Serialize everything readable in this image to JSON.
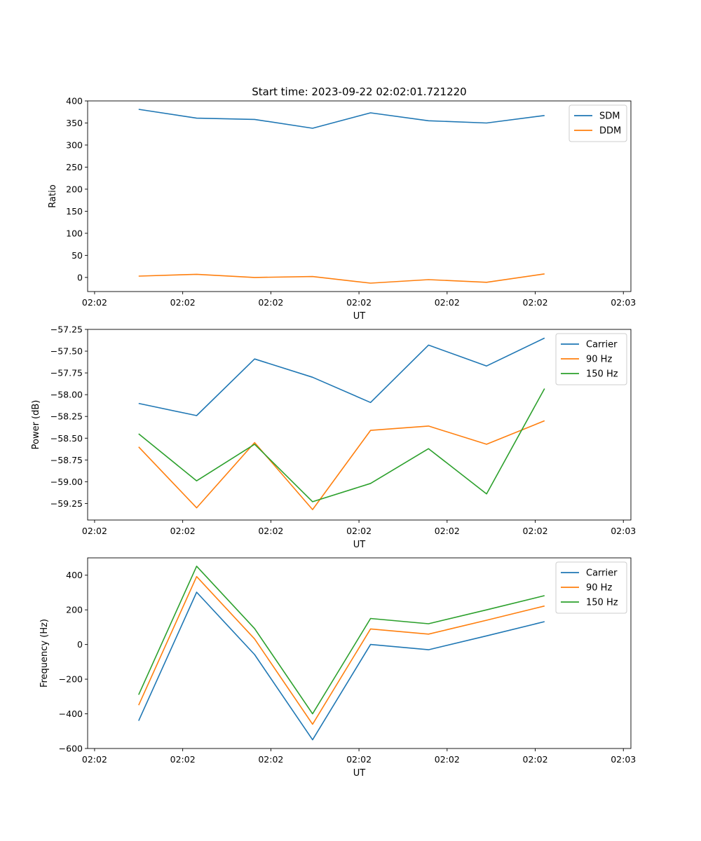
{
  "title": "Start time: 2023-09-22 02:02:01.721220",
  "colors": {
    "blue": "#1f77b4",
    "orange": "#ff7f0e",
    "green": "#2ca02c"
  },
  "chart_data": [
    {
      "type": "line",
      "xlabel": "UT",
      "ylabel": "Ratio",
      "ylim": [
        -32,
        400
      ],
      "yticks": [
        0,
        50,
        100,
        150,
        200,
        250,
        300,
        350,
        400
      ],
      "ytick_labels": [
        "0",
        "50",
        "100",
        "150",
        "200",
        "250",
        "300",
        "350",
        "400"
      ],
      "xlim": [
        -0.12,
        9.25
      ],
      "xticks": [
        0,
        1.52,
        3.04,
        4.56,
        6.08,
        7.6,
        9.12
      ],
      "xtick_labels": [
        "02:02",
        "02:02",
        "02:02",
        "02:02",
        "02:02",
        "02:02",
        "02:03"
      ],
      "x": [
        0.76,
        1.76,
        2.76,
        3.76,
        4.76,
        5.76,
        6.76,
        7.76
      ],
      "legend": "top-right",
      "series": [
        {
          "name": "SDM",
          "color": "#1f77b4",
          "values": [
            381,
            361,
            358,
            338,
            373,
            355,
            350,
            367
          ]
        },
        {
          "name": "DDM",
          "color": "#ff7f0e",
          "values": [
            3,
            7,
            0,
            2,
            -13,
            -5,
            -11,
            8
          ]
        }
      ]
    },
    {
      "type": "line",
      "xlabel": "UT",
      "ylabel": "Power (dB)",
      "ylim": [
        -59.44,
        -57.25
      ],
      "yticks": [
        -59.25,
        -59.0,
        -58.75,
        -58.5,
        -58.25,
        -58.0,
        -57.75,
        -57.5,
        -57.25
      ],
      "ytick_labels": [
        "−59.25",
        "−59.00",
        "−58.75",
        "−58.50",
        "−58.25",
        "−58.00",
        "−57.75",
        "−57.50",
        "−57.25"
      ],
      "xlim": [
        -0.12,
        9.25
      ],
      "xticks": [
        0,
        1.52,
        3.04,
        4.56,
        6.08,
        7.6,
        9.12
      ],
      "xtick_labels": [
        "02:02",
        "02:02",
        "02:02",
        "02:02",
        "02:02",
        "02:02",
        "02:03"
      ],
      "x": [
        0.76,
        1.76,
        2.76,
        3.76,
        4.76,
        5.76,
        6.76,
        7.76
      ],
      "legend": "top-right",
      "series": [
        {
          "name": "Carrier",
          "color": "#1f77b4",
          "values": [
            -58.1,
            -58.24,
            -57.59,
            -57.8,
            -58.09,
            -57.43,
            -57.67,
            -57.35
          ]
        },
        {
          "name": "90 Hz",
          "color": "#ff7f0e",
          "values": [
            -58.6,
            -59.3,
            -58.55,
            -59.32,
            -58.41,
            -58.36,
            -58.57,
            -58.3
          ]
        },
        {
          "name": "150 Hz",
          "color": "#2ca02c",
          "values": [
            -58.45,
            -58.99,
            -58.57,
            -59.23,
            -59.02,
            -58.62,
            -59.14,
            -57.93
          ]
        }
      ]
    },
    {
      "type": "line",
      "xlabel": "UT",
      "ylabel": "Frequency (Hz)",
      "ylim": [
        -600,
        500
      ],
      "yticks": [
        -600,
        -400,
        -200,
        0,
        200,
        400
      ],
      "ytick_labels": [
        "−600",
        "−400",
        "−200",
        "0",
        "200",
        "400"
      ],
      "xlim": [
        -0.12,
        9.25
      ],
      "xticks": [
        0,
        1.52,
        3.04,
        4.56,
        6.08,
        7.6,
        9.12
      ],
      "xtick_labels": [
        "02:02",
        "02:02",
        "02:02",
        "02:02",
        "02:02",
        "02:02",
        "02:03"
      ],
      "x": [
        0.76,
        1.76,
        2.76,
        3.76,
        4.76,
        5.76,
        6.76,
        7.76
      ],
      "legend": "top-right",
      "series": [
        {
          "name": "Carrier",
          "color": "#1f77b4",
          "values": [
            -440,
            302,
            -58,
            -550,
            0,
            -30,
            50,
            132
          ]
        },
        {
          "name": "90 Hz",
          "color": "#ff7f0e",
          "values": [
            -350,
            392,
            32,
            -460,
            90,
            60,
            140,
            222
          ]
        },
        {
          "name": "150 Hz",
          "color": "#2ca02c",
          "values": [
            -290,
            452,
            92,
            -400,
            150,
            120,
            200,
            282
          ]
        }
      ]
    }
  ]
}
